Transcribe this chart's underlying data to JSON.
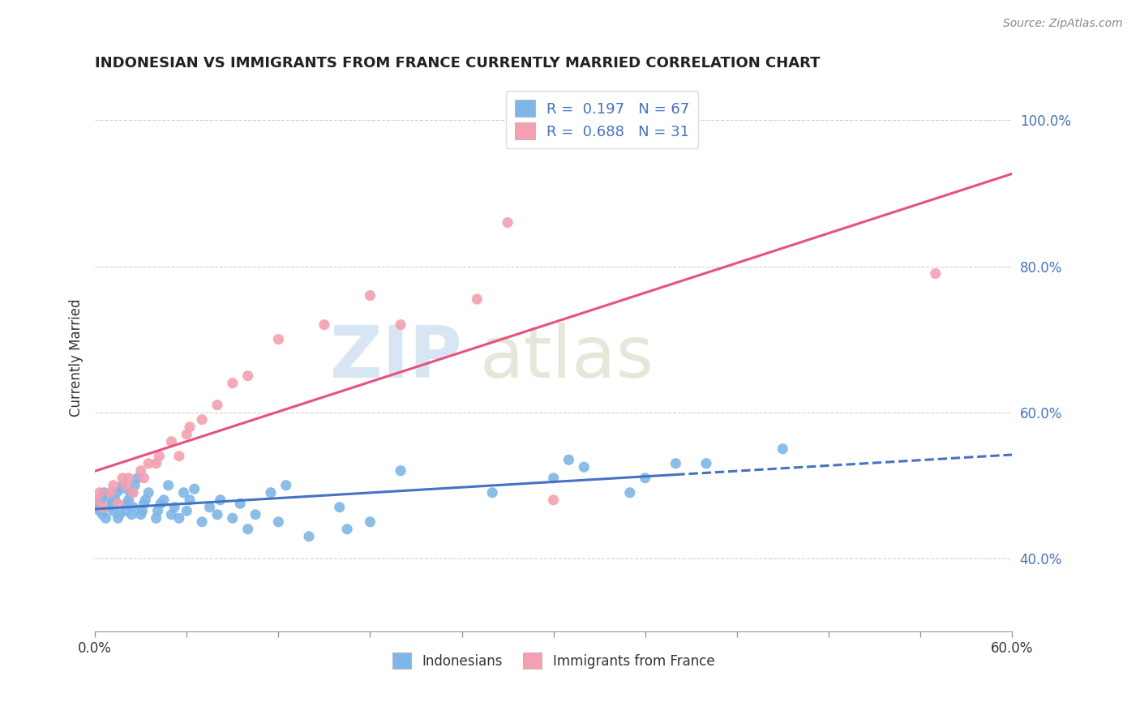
{
  "title": "INDONESIAN VS IMMIGRANTS FROM FRANCE CURRENTLY MARRIED CORRELATION CHART",
  "source": "Source: ZipAtlas.com",
  "ylabel": "Currently Married",
  "xlim": [
    0.0,
    0.6
  ],
  "ylim": [
    0.3,
    1.05
  ],
  "xticks": [
    0.0,
    0.06,
    0.12,
    0.18,
    0.24,
    0.3,
    0.36,
    0.42,
    0.48,
    0.54,
    0.6
  ],
  "ytick_positions": [
    0.4,
    0.6,
    0.8,
    1.0
  ],
  "ytick_labels": [
    "40.0%",
    "60.0%",
    "80.0%",
    "100.0%"
  ],
  "R_indonesian": 0.197,
  "N_indonesian": 67,
  "R_france": 0.688,
  "N_france": 31,
  "color_indonesian": "#7EB6E8",
  "color_france": "#F4A0B0",
  "trend_color_indonesian": "#4472C4",
  "trend_color_france": "#E85080",
  "legend_text_color": "#4472C4",
  "indo_x": [
    0.001,
    0.002,
    0.003,
    0.004,
    0.005,
    0.006,
    0.007,
    0.008,
    0.01,
    0.011,
    0.012,
    0.013,
    0.014,
    0.015,
    0.016,
    0.017,
    0.018,
    0.02,
    0.021,
    0.022,
    0.023,
    0.024,
    0.025,
    0.026,
    0.028,
    0.03,
    0.031,
    0.032,
    0.033,
    0.035,
    0.04,
    0.041,
    0.043,
    0.045,
    0.048,
    0.05,
    0.052,
    0.055,
    0.058,
    0.06,
    0.062,
    0.065,
    0.07,
    0.075,
    0.08,
    0.082,
    0.09,
    0.095,
    0.1,
    0.105,
    0.115,
    0.12,
    0.125,
    0.14,
    0.16,
    0.165,
    0.18,
    0.2,
    0.26,
    0.3,
    0.31,
    0.32,
    0.35,
    0.36,
    0.38,
    0.4,
    0.45
  ],
  "indo_y": [
    0.47,
    0.475,
    0.465,
    0.48,
    0.46,
    0.49,
    0.455,
    0.485,
    0.47,
    0.475,
    0.465,
    0.48,
    0.49,
    0.455,
    0.46,
    0.495,
    0.5,
    0.465,
    0.475,
    0.48,
    0.49,
    0.46,
    0.47,
    0.5,
    0.51,
    0.46,
    0.465,
    0.475,
    0.48,
    0.49,
    0.455,
    0.465,
    0.475,
    0.48,
    0.5,
    0.46,
    0.47,
    0.455,
    0.49,
    0.465,
    0.48,
    0.495,
    0.45,
    0.47,
    0.46,
    0.48,
    0.455,
    0.475,
    0.44,
    0.46,
    0.49,
    0.45,
    0.5,
    0.43,
    0.47,
    0.44,
    0.45,
    0.52,
    0.49,
    0.51,
    0.535,
    0.525,
    0.49,
    0.51,
    0.53,
    0.53,
    0.55
  ],
  "france_x": [
    0.001,
    0.003,
    0.005,
    0.01,
    0.012,
    0.015,
    0.018,
    0.02,
    0.022,
    0.025,
    0.03,
    0.032,
    0.035,
    0.04,
    0.042,
    0.05,
    0.055,
    0.06,
    0.062,
    0.07,
    0.08,
    0.09,
    0.1,
    0.12,
    0.15,
    0.18,
    0.2,
    0.25,
    0.27,
    0.3,
    0.55
  ],
  "france_y": [
    0.48,
    0.49,
    0.47,
    0.49,
    0.5,
    0.475,
    0.51,
    0.5,
    0.51,
    0.49,
    0.52,
    0.51,
    0.53,
    0.53,
    0.54,
    0.56,
    0.54,
    0.57,
    0.58,
    0.59,
    0.61,
    0.64,
    0.65,
    0.7,
    0.72,
    0.76,
    0.72,
    0.755,
    0.86,
    0.48,
    0.79
  ]
}
